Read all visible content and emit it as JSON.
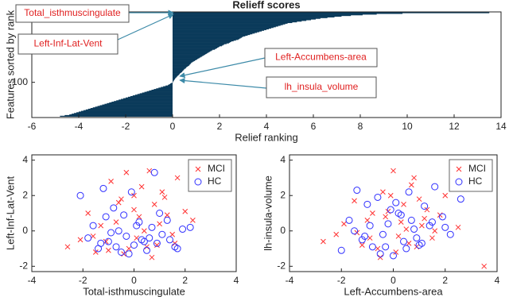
{
  "chart_data": [
    {
      "type": "hbar",
      "title": "Relieff scores",
      "xlabel": "Relief ranking",
      "ylabel": "Features sorted by rank",
      "color": "#0b3a5a",
      "xlim": [
        -6,
        14
      ],
      "xticks": [
        -6,
        -4,
        -2,
        0,
        2,
        4,
        6,
        8,
        10,
        12,
        14
      ],
      "ylim": [
        0,
        150
      ],
      "yticks": [
        100
      ],
      "values": [
        13.5,
        9.8,
        8.7,
        8.1,
        7.6,
        7.2,
        6.9,
        6.6,
        6.3,
        6.1,
        5.9,
        5.7,
        5.5,
        5.3,
        5.1,
        4.9,
        4.8,
        4.7,
        4.6,
        4.5,
        4.4,
        4.3,
        4.2,
        4.1,
        4.0,
        3.9,
        3.8,
        3.7,
        3.6,
        3.5,
        3.4,
        3.3,
        3.2,
        3.1,
        3.0,
        2.95,
        2.9,
        2.85,
        2.8,
        2.7,
        2.6,
        2.5,
        2.45,
        2.4,
        2.3,
        2.2,
        2.15,
        2.1,
        2.0,
        1.95,
        1.9,
        1.85,
        1.8,
        1.7,
        1.65,
        1.6,
        1.55,
        1.5,
        1.45,
        1.4,
        1.35,
        1.3,
        1.25,
        1.2,
        1.15,
        1.1,
        1.05,
        1.0,
        0.95,
        0.9,
        0.85,
        0.8,
        0.78,
        0.75,
        0.72,
        0.7,
        0.65,
        0.6,
        0.58,
        0.55,
        0.5,
        0.48,
        0.45,
        0.42,
        0.4,
        0.36,
        0.32,
        0.3,
        0.27,
        0.24,
        0.2,
        0.18,
        0.15,
        0.12,
        0.1,
        0.08,
        0.06,
        0.04,
        0.02,
        0.01,
        -0.05,
        -0.1,
        -0.15,
        -0.2,
        -0.3,
        -0.4,
        -0.5,
        -0.6,
        -0.7,
        -0.8,
        -0.9,
        -1.0,
        -1.1,
        -1.2,
        -1.3,
        -1.4,
        -1.5,
        -1.6,
        -1.7,
        -1.8,
        -1.9,
        -2.0,
        -2.1,
        -2.2,
        -2.3,
        -2.4,
        -2.5,
        -2.6,
        -2.7,
        -2.8,
        -2.9,
        -3.0,
        -3.1,
        -3.2,
        -3.3,
        -3.4,
        -3.5,
        -3.6,
        -3.7,
        -3.8,
        -3.9,
        -4.0,
        -4.1,
        -4.2,
        -4.3,
        -4.4,
        -4.6,
        -4.8
      ],
      "annotations": [
        "Total_isthmuscingulate",
        "Left-Inf-Lat-Vent",
        "Left-Accumbens-area",
        "lh_insula_volume"
      ]
    },
    {
      "type": "scatter",
      "xlabel": "Total-isthmuscingulate",
      "ylabel": "Left-Inf-Lat-Vent",
      "xlim": [
        -4,
        4
      ],
      "xticks": [
        -4,
        -2,
        0,
        2,
        4
      ],
      "ylim": [
        -2.3,
        4.3
      ],
      "yticks": [
        -2,
        0,
        2,
        4
      ],
      "legend": "top-right",
      "series": [
        {
          "name": "MCI",
          "color": "#ff3030",
          "marker": "x",
          "x": [
            -2.6,
            -2.1,
            -1.8,
            -1.5,
            -1.3,
            -1.1,
            -0.9,
            -0.7,
            -0.5,
            -0.3,
            -0.2,
            0,
            0.1,
            0.3,
            0.4,
            0.6,
            0.8,
            0.9,
            1.1,
            1.3,
            1.5,
            1.7,
            2.0,
            2.3,
            -0.4,
            0.5,
            1.0,
            -1.0,
            0.2,
            1.6,
            -0.6,
            0.7,
            1.2,
            -1.6,
            0.0
          ],
          "values": [
            -0.9,
            -0.5,
            1.0,
            -1.2,
            0.3,
            -0.6,
            2.8,
            0.5,
            1.8,
            3.3,
            -1.0,
            1.2,
            -0.4,
            2.5,
            0.0,
            3.4,
            1.5,
            -0.8,
            2.2,
            0.9,
            -0.2,
            3.0,
            1.1,
            0.6,
            -1.3,
            -0.9,
            0.4,
            -1.1,
            0.8,
            -0.7,
            1.6,
            -1.5,
            1.9,
            -0.3,
            2.0
          ]
        },
        {
          "name": "HC",
          "color": "#3030ff",
          "marker": "o",
          "x": [
            -2.1,
            -1.8,
            -1.6,
            -1.4,
            -1.2,
            -1.0,
            -0.8,
            -0.6,
            -0.5,
            -0.3,
            -0.1,
            0.0,
            0.2,
            0.3,
            0.5,
            0.7,
            0.9,
            1.1,
            1.3,
            1.6,
            1.9,
            2.2,
            -0.9,
            -0.4,
            0.4,
            1.0,
            -1.3,
            0.6,
            -0.2,
            1.4,
            -0.7,
            0.1,
            1.7,
            -1.1,
            0.8
          ],
          "values": [
            2.0,
            -0.4,
            0.3,
            -1.0,
            2.4,
            -0.6,
            1.3,
            0.0,
            -1.2,
            -0.3,
            2.2,
            -0.8,
            0.5,
            -0.5,
            -1.1,
            0.2,
            -0.7,
            -0.2,
            0.6,
            -0.9,
            0.1,
            0.2,
            -0.1,
            0.9,
            -0.6,
            1.0,
            -0.7,
            -0.4,
            -1.3,
            -0.5,
            -0.9,
            0.3,
            -1.0,
            0.8,
            3.3
          ]
        }
      ]
    },
    {
      "type": "scatter",
      "xlabel": "Left-Accumbens-area",
      "ylabel": "lh-insula-volume",
      "xlim": [
        -4,
        4
      ],
      "xticks": [
        -4,
        -2,
        0,
        2,
        4
      ],
      "ylim": [
        -2.3,
        4.3
      ],
      "yticks": [
        -2,
        0,
        2,
        4
      ],
      "legend": "top-right",
      "series": [
        {
          "name": "MCI",
          "color": "#ff3030",
          "marker": "x",
          "x": [
            -2.7,
            -2.2,
            -1.9,
            -1.5,
            -1.2,
            -1.0,
            -0.8,
            -0.5,
            -0.3,
            -0.1,
            0.0,
            0.2,
            0.4,
            0.5,
            0.7,
            0.9,
            1.1,
            1.3,
            1.5,
            1.8,
            2.0,
            2.5,
            3.5,
            -0.6,
            0.3,
            1.0,
            -1.4,
            0.6,
            -0.2,
            1.6,
            0.8,
            -0.9,
            1.2,
            0.1,
            -0.4
          ],
          "values": [
            -0.6,
            -0.2,
            0.4,
            1.7,
            -0.8,
            0.6,
            1.0,
            -1.5,
            0.8,
            2.0,
            3.4,
            -0.3,
            1.5,
            0.1,
            2.6,
            -0.9,
            0.3,
            1.2,
            -0.4,
            0.9,
            2.0,
            0.2,
            -2.0,
            -1.0,
            0.5,
            1.8,
            -0.1,
            -0.7,
            1.1,
            0.0,
            3.0,
            -0.4,
            0.7,
            -1.2,
            2.2
          ]
        },
        {
          "name": "HC",
          "color": "#3030ff",
          "marker": "o",
          "x": [
            -2.0,
            -1.7,
            -1.4,
            -1.2,
            -1.0,
            -0.8,
            -0.6,
            -0.4,
            -0.2,
            0.0,
            0.2,
            0.4,
            0.6,
            0.8,
            1.0,
            1.2,
            1.4,
            1.6,
            1.9,
            2.2,
            2.6,
            -1.5,
            -0.5,
            0.3,
            0.9,
            -0.9,
            0.5,
            1.5,
            -0.1,
            1.1,
            -1.1,
            0.7,
            2.0,
            -0.3,
            0.1
          ],
          "values": [
            -1.1,
            0.6,
            2.3,
            -0.5,
            1.5,
            -0.9,
            1.9,
            -0.2,
            0.4,
            -1.4,
            1.0,
            -0.6,
            2.2,
            0.1,
            -0.8,
            1.4,
            0.3,
            2.5,
            0.8,
            -0.2,
            1.8,
            0.0,
            -1.3,
            0.9,
            -0.4,
            0.3,
            -1.0,
            0.5,
            1.2,
            -0.7,
            -0.3,
            0.6,
            0.2,
            -0.9,
            1.6
          ]
        }
      ]
    }
  ]
}
